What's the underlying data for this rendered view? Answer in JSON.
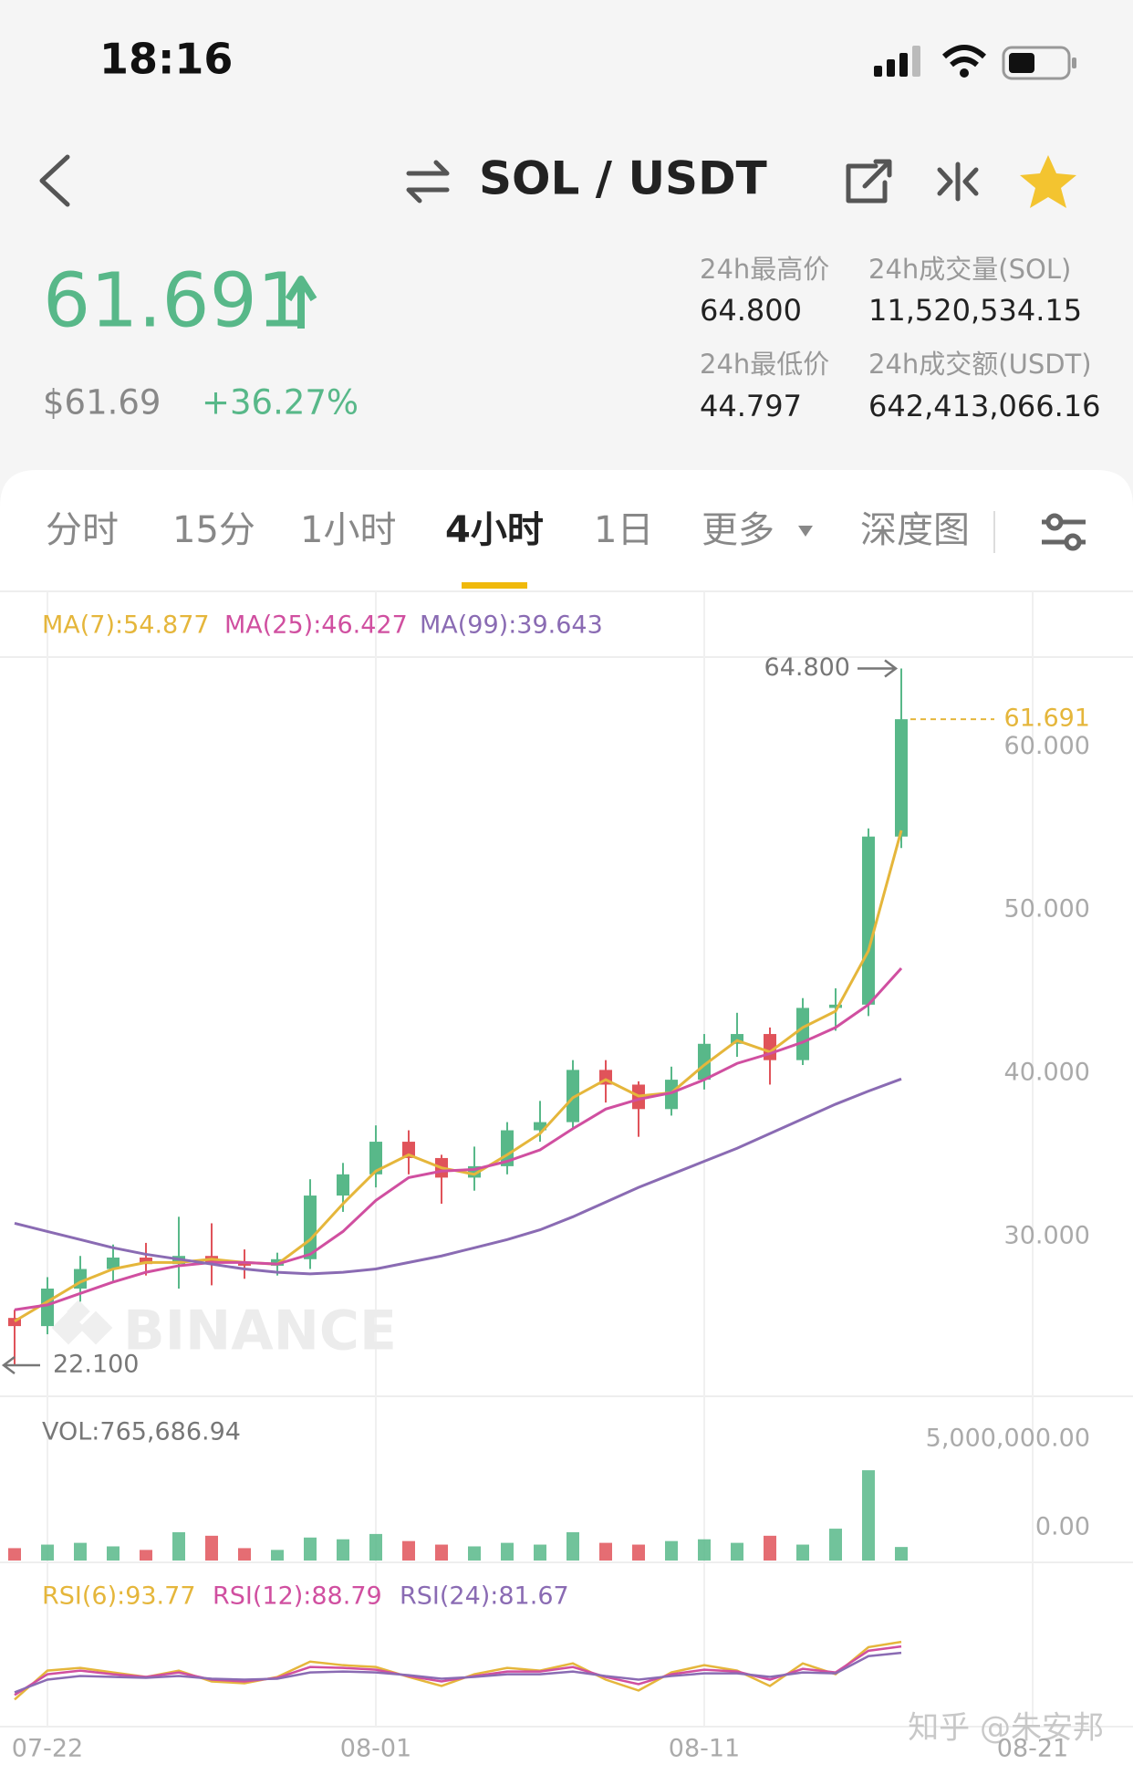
{
  "status_bar": {
    "time": "18:16"
  },
  "header": {
    "title": "SOL / USDT"
  },
  "ticker": {
    "price": "61.691",
    "usd_price": "$61.69",
    "change": "+36.27%",
    "stats": [
      {
        "label": "24h最高价",
        "value": "64.800"
      },
      {
        "label": "24h成交量(SOL)",
        "value": "11,520,534.15"
      },
      {
        "label": "24h最低价",
        "value": "44.797"
      },
      {
        "label": "24h成交额(USDT)",
        "value": "642,413,066.16"
      }
    ]
  },
  "tabs": {
    "items": [
      "分时",
      "15分",
      "1小时",
      "4小时",
      "1日",
      "更多",
      "深度图"
    ],
    "active": 3
  },
  "watermarks": [
    "BINANCE",
    "知乎 @朱安邦"
  ],
  "chart_data": [
    {
      "type": "candlestick",
      "categories": [
        null,
        "07-22",
        null,
        null,
        null,
        null,
        null,
        null,
        null,
        null,
        null,
        "08-01",
        null,
        null,
        null,
        null,
        null,
        null,
        null,
        null,
        null,
        "08-11",
        null,
        null,
        null,
        null,
        null,
        null
      ],
      "open": [
        25,
        24.5,
        26.8,
        28,
        28.7,
        28.3,
        28.8,
        28.4,
        28.2,
        28.6,
        32.5,
        33.8,
        35.8,
        34.8,
        33.6,
        34.3,
        36.5,
        37,
        40.2,
        39.3,
        37.8,
        39.6,
        41.8,
        42.4,
        40.8,
        44,
        44.2,
        54.5
      ],
      "high": [
        25.5,
        27.5,
        28.8,
        29.5,
        29.6,
        31.2,
        30.8,
        29.2,
        29,
        33.5,
        34.5,
        36.8,
        36.5,
        35,
        35.5,
        37,
        38.3,
        40.8,
        40.8,
        39.5,
        40.4,
        42.4,
        43.7,
        42.8,
        44.6,
        45.2,
        55,
        64.8
      ],
      "low": [
        22.1,
        24,
        26,
        27.2,
        27.6,
        26.8,
        27,
        27.4,
        27.6,
        28,
        31.5,
        33,
        33.8,
        32,
        32.8,
        33.8,
        35.8,
        36.6,
        38.2,
        36.1,
        37.4,
        39,
        41,
        39.3,
        40.5,
        42.6,
        43.5,
        53.8
      ],
      "close": [
        24.5,
        26.8,
        28,
        28.7,
        28.3,
        28.8,
        28.4,
        28.2,
        28.6,
        32.5,
        33.8,
        35.8,
        34.8,
        33.6,
        34.3,
        36.5,
        37,
        40.2,
        39.3,
        37.8,
        39.6,
        41.8,
        42.4,
        40.8,
        44,
        44.2,
        54.5,
        61.691
      ],
      "up_color": "#58b889",
      "down_color": "#e0535a",
      "series": [
        {
          "name": "MA(7):54.877",
          "color": "#e5b63b",
          "values": [
            24.8,
            26,
            27.2,
            28,
            28.4,
            28.4,
            28.6,
            28.4,
            28.3,
            29.8,
            32,
            34,
            35,
            34.2,
            33.8,
            35,
            36.3,
            38.5,
            39.6,
            38.6,
            38.8,
            40.5,
            42,
            41.3,
            42.8,
            43.8,
            47.5,
            54.877
          ]
        },
        {
          "name": "MA(25):46.427",
          "color": "#d04fa0",
          "values": [
            25.5,
            25.8,
            26.5,
            27.2,
            27.8,
            28.2,
            28.4,
            28.4,
            28.3,
            28.9,
            30.3,
            32.2,
            33.6,
            34,
            34.1,
            34.6,
            35.3,
            36.6,
            37.8,
            38.4,
            38.8,
            39.6,
            40.6,
            41.2,
            41.9,
            42.8,
            44.2,
            46.427
          ]
        },
        {
          "name": "MA(99):39.643",
          "color": "#8a6bb3",
          "values": [
            30.8,
            30.3,
            29.8,
            29.3,
            28.9,
            28.6,
            28.3,
            28,
            27.8,
            27.7,
            27.8,
            28,
            28.4,
            28.8,
            29.3,
            29.8,
            30.4,
            31.2,
            32.1,
            33,
            33.8,
            34.6,
            35.4,
            36.3,
            37.2,
            38.1,
            38.9,
            39.643
          ]
        }
      ],
      "max_label": "64.800",
      "min_label": "22.100",
      "last_label": "61.691",
      "ylim": [
        20.2,
        65.5
      ],
      "yticks": [
        {
          "value": 30,
          "label": "30.000"
        },
        {
          "value": 40,
          "label": "40.000"
        },
        {
          "value": 50,
          "label": "50.000"
        },
        {
          "value": 60,
          "label": "60.000"
        }
      ],
      "xticks": [
        "07-22",
        "08-01",
        "08-11",
        "08-21"
      ]
    },
    {
      "type": "bar",
      "title": "VOL:765,686.94",
      "values": [
        700000,
        900000,
        1000000,
        800000,
        600000,
        1600000,
        1400000,
        700000,
        600000,
        1300000,
        1200000,
        1500000,
        1100000,
        900000,
        800000,
        1000000,
        900000,
        1600000,
        1000000,
        900000,
        1100000,
        1200000,
        1000000,
        1400000,
        900000,
        1800000,
        5100000,
        765686.94
      ],
      "ylim": [
        0,
        8970000
      ],
      "yticks": [
        {
          "value": 0,
          "label": "0.00"
        },
        {
          "value": 5000000,
          "label": "5,000,000.00"
        }
      ]
    },
    {
      "type": "line",
      "series": [
        {
          "name": "RSI(6):93.77",
          "color": "#e5b63b",
          "values": [
            30,
            62,
            65,
            60,
            55,
            62,
            50,
            48,
            55,
            72,
            68,
            66,
            55,
            45,
            58,
            65,
            62,
            70,
            52,
            40,
            60,
            68,
            62,
            45,
            70,
            58,
            88,
            93.77
          ]
        },
        {
          "name": "RSI(12):88.79",
          "color": "#d04fa0",
          "values": [
            35,
            58,
            62,
            58,
            55,
            60,
            52,
            50,
            54,
            66,
            65,
            63,
            56,
            50,
            56,
            61,
            61,
            66,
            55,
            47,
            58,
            63,
            61,
            52,
            64,
            60,
            84,
            88.79
          ]
        },
        {
          "name": "RSI(24):81.67",
          "color": "#8a6bb3",
          "values": [
            38,
            52,
            56,
            55,
            54,
            56,
            53,
            52,
            53,
            60,
            61,
            60,
            57,
            53,
            55,
            58,
            58,
            61,
            56,
            52,
            56,
            59,
            59,
            55,
            60,
            59,
            78,
            81.67
          ]
        }
      ],
      "ylim": [
        0,
        100
      ]
    }
  ]
}
